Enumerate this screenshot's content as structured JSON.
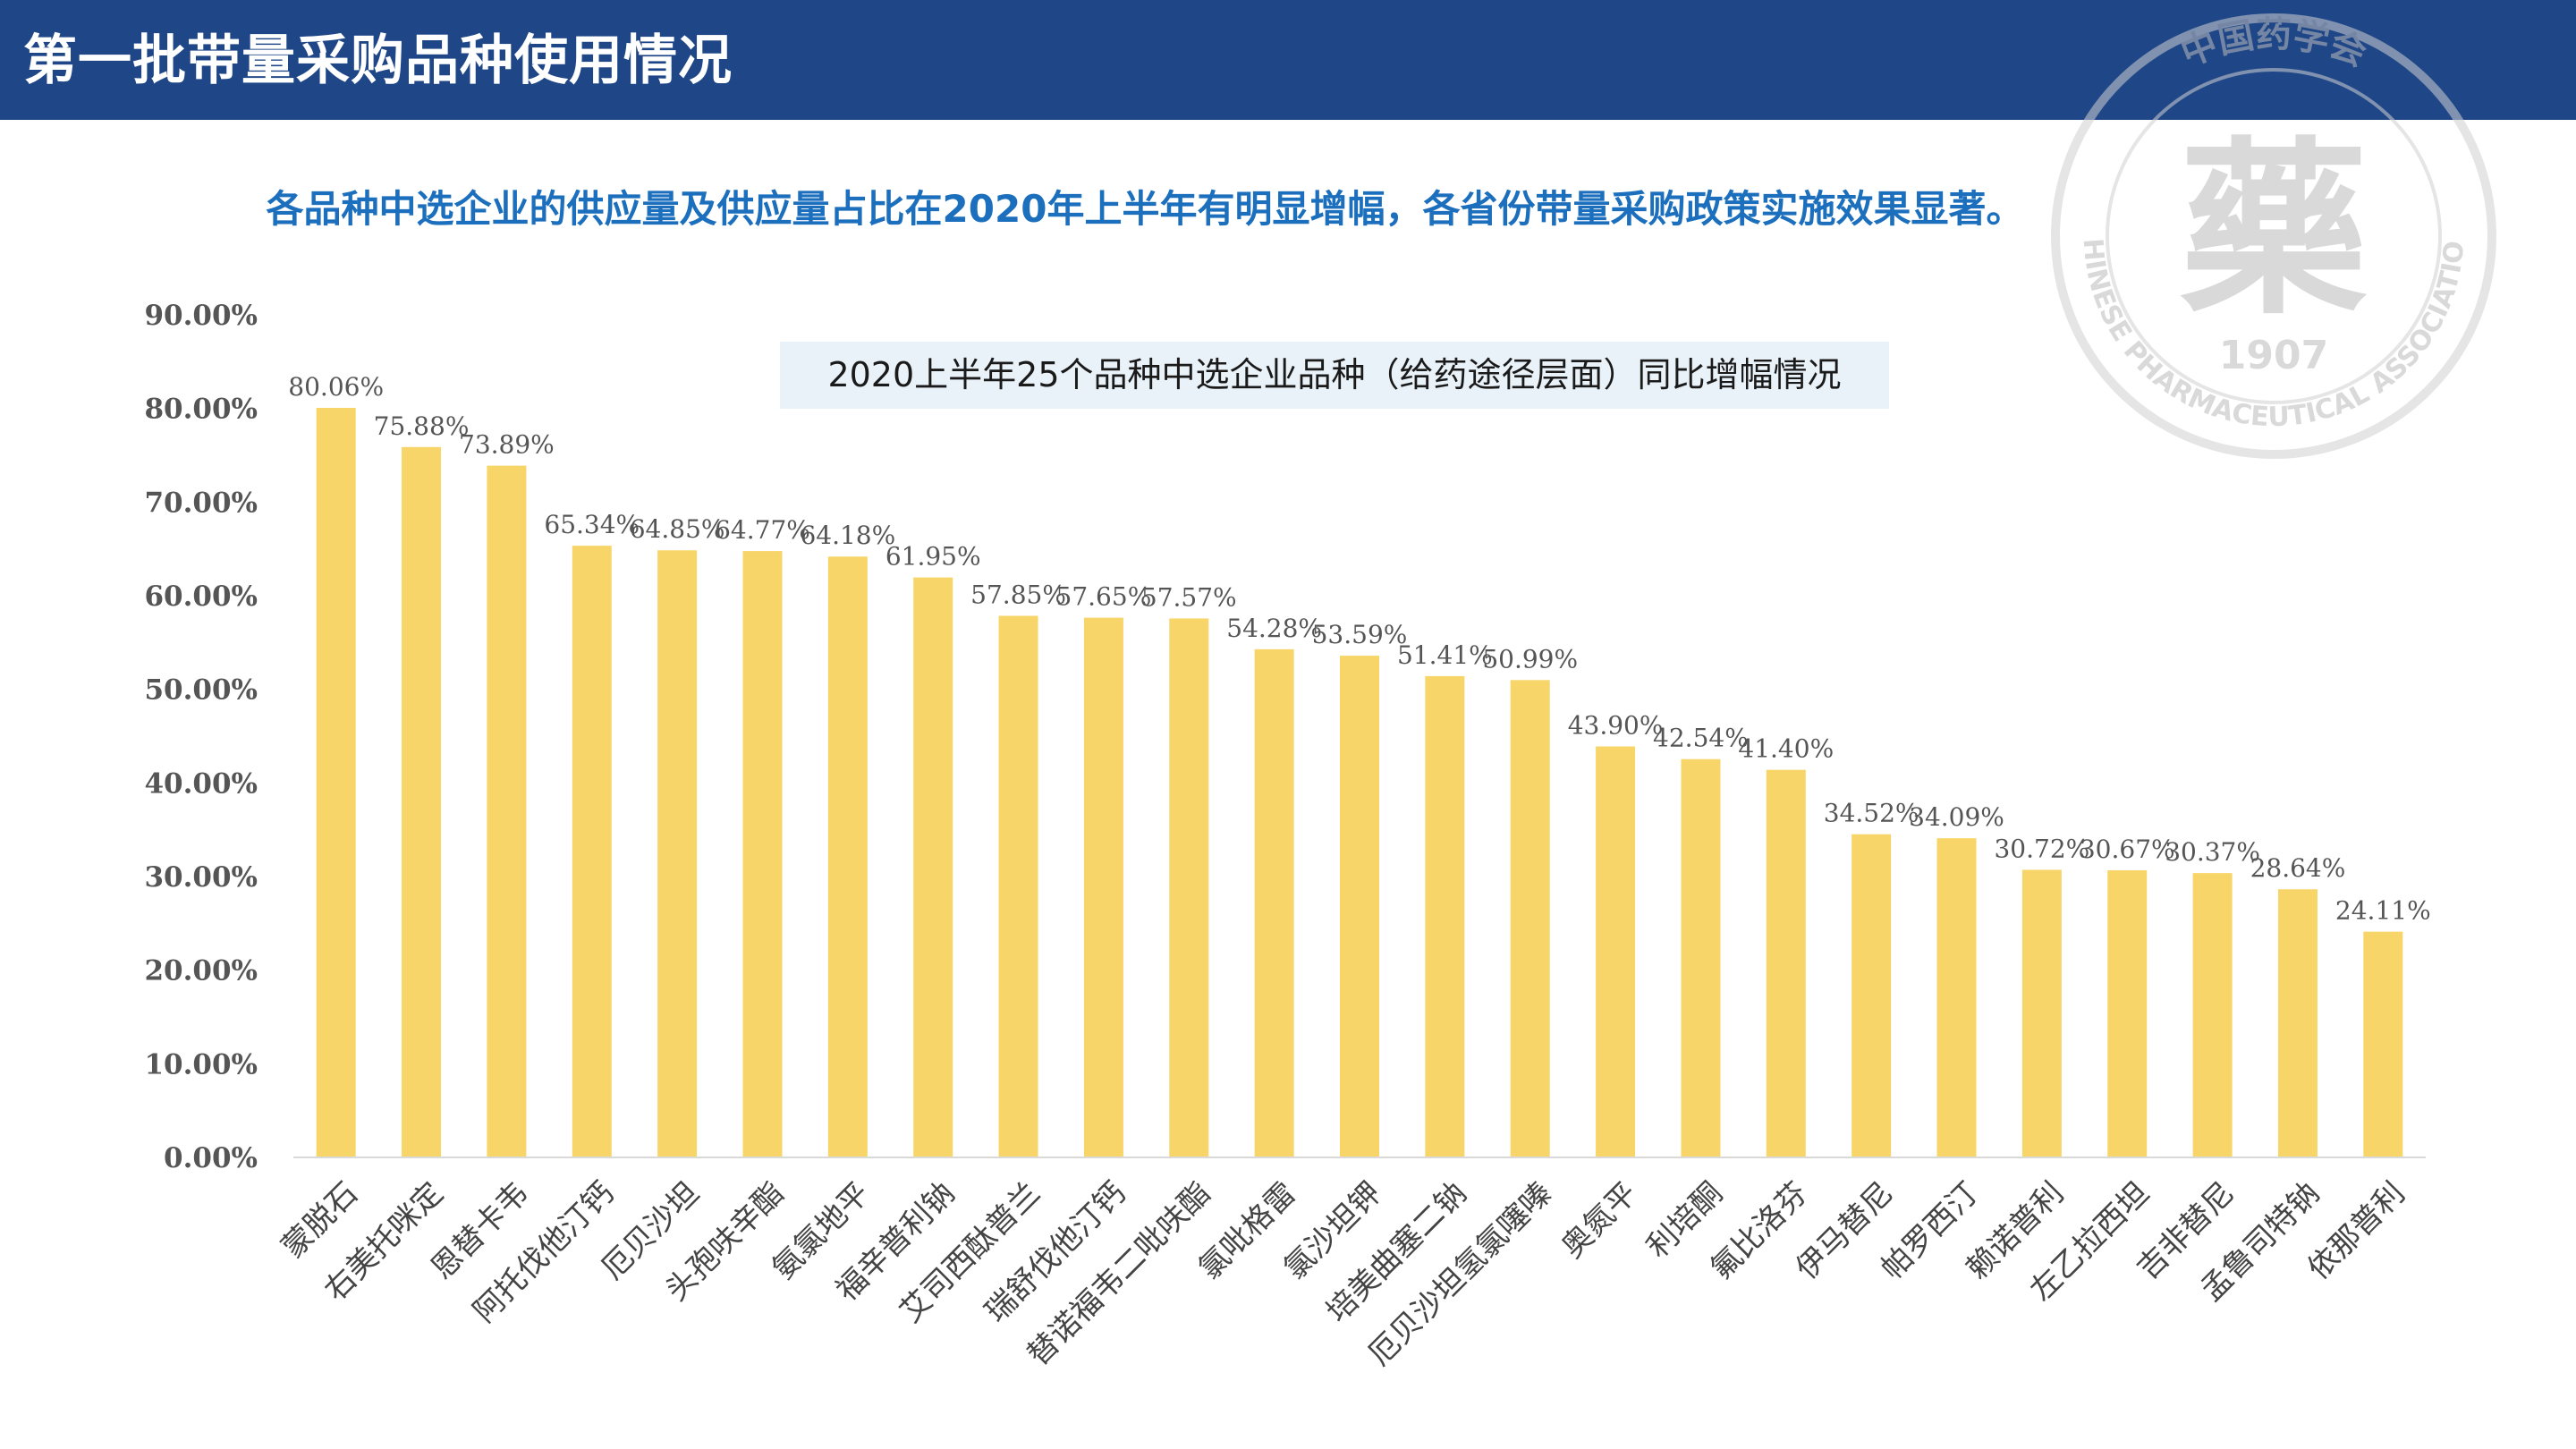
{
  "header": {
    "title": "第一批带量采购品种使用情况"
  },
  "subtitle": "各品种中选企业的供应量及供应量占比在2020年上半年有明显增幅，各省份带量采购政策实施效果显著。",
  "seal": {
    "emblem": "藥",
    "year": "1907",
    "ring_text": "CHINESE PHARMACEUTICAL ASSOCIATION",
    "top_text": "中国药学会"
  },
  "colors": {
    "header_bg": "#1f4788",
    "subtitle": "#1c6fbd",
    "bar": "#f8d568"
  },
  "chart_data": {
    "type": "bar",
    "title": "2020上半年25个品种中选企业品种（给药途径层面）同比增幅情况",
    "xlabel": "",
    "ylabel": "",
    "ylim": [
      0,
      90
    ],
    "ytick_labels": [
      "0.00%",
      "10.00%",
      "20.00%",
      "30.00%",
      "40.00%",
      "50.00%",
      "60.00%",
      "70.00%",
      "80.00%",
      "90.00%"
    ],
    "grid": false,
    "categories": [
      "蒙脱石",
      "右美托咪定",
      "恩替卡韦",
      "阿托伐他汀钙",
      "厄贝沙坦",
      "头孢呋辛酯",
      "氨氯地平",
      "福辛普利钠",
      "艾司西酞普兰",
      "瑞舒伐他汀钙",
      "替诺福韦二吡呋酯",
      "氯吡格雷",
      "氯沙坦钾",
      "培美曲塞二钠",
      "厄贝沙坦氢氯噻嗪",
      "奥氮平",
      "利培酮",
      "氟比洛芬",
      "伊马替尼",
      "帕罗西汀",
      "赖诺普利",
      "左乙拉西坦",
      "吉非替尼",
      "孟鲁司特钠",
      "依那普利"
    ],
    "values": [
      80.06,
      75.88,
      73.89,
      65.34,
      64.85,
      64.77,
      64.18,
      61.95,
      57.85,
      57.65,
      57.57,
      54.28,
      53.59,
      51.41,
      50.99,
      43.9,
      42.54,
      41.4,
      34.52,
      34.09,
      30.72,
      30.67,
      30.37,
      28.64,
      24.11
    ],
    "data_labels": [
      "80.06%",
      "75.88%",
      "73.89%",
      "65.34%",
      "64.85%",
      "64.77%",
      "64.18%",
      "61.95%",
      "57.85%",
      "57.65%",
      "57.57%",
      "54.28%",
      "53.59%",
      "51.41%",
      "50.99%",
      "43.90%",
      "42.54%",
      "41.40%",
      "34.52%",
      "34.09%",
      "30.72%",
      "30.67%",
      "30.37%",
      "28.64%",
      "24.11%"
    ]
  }
}
